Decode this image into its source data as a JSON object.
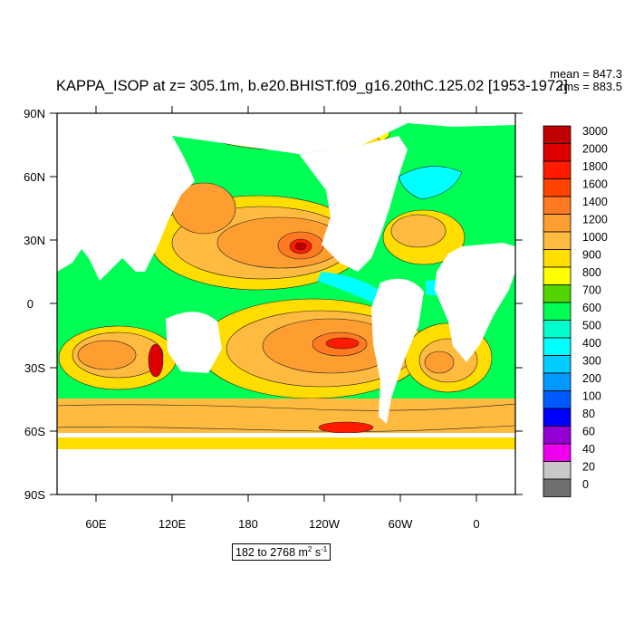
{
  "title": "KAPPA_ISOP at z= 305.1m, b.e20.BHIST.f09_g16.20thC.125.02 [1953-1972]",
  "stats": {
    "mean": "mean = 847.3",
    "rms": "rms = 883.5"
  },
  "axes": {
    "lat_ticks": [
      "90N",
      "60N",
      "30N",
      "0",
      "30S",
      "60S",
      "90S"
    ],
    "lon_ticks": [
      "60E",
      "120E",
      "180",
      "120W",
      "60W",
      "0"
    ]
  },
  "colorbar": {
    "levels": [
      "3000",
      "2000",
      "1800",
      "1600",
      "1400",
      "1200",
      "1000",
      "900",
      "800",
      "700",
      "600",
      "500",
      "400",
      "300",
      "200",
      "100",
      "80",
      "60",
      "40",
      "20",
      "0"
    ],
    "colors": [
      "#c00000",
      "#dd0000",
      "#ff1a00",
      "#ff4400",
      "#ff7a20",
      "#ff9e30",
      "#ffbb40",
      "#ffdd00",
      "#ffff00",
      "#52d400",
      "#00ff55",
      "#00ffcc",
      "#00ffff",
      "#00ccff",
      "#0099ff",
      "#005aff",
      "#0000ff",
      "#9400d3",
      "#ee00ee",
      "#c8c8c8",
      "#6e6e6e"
    ]
  },
  "range": {
    "prefix": "182 to 2768 m",
    "sup1": "2",
    "mid": " s",
    "sup2": "-1"
  }
}
